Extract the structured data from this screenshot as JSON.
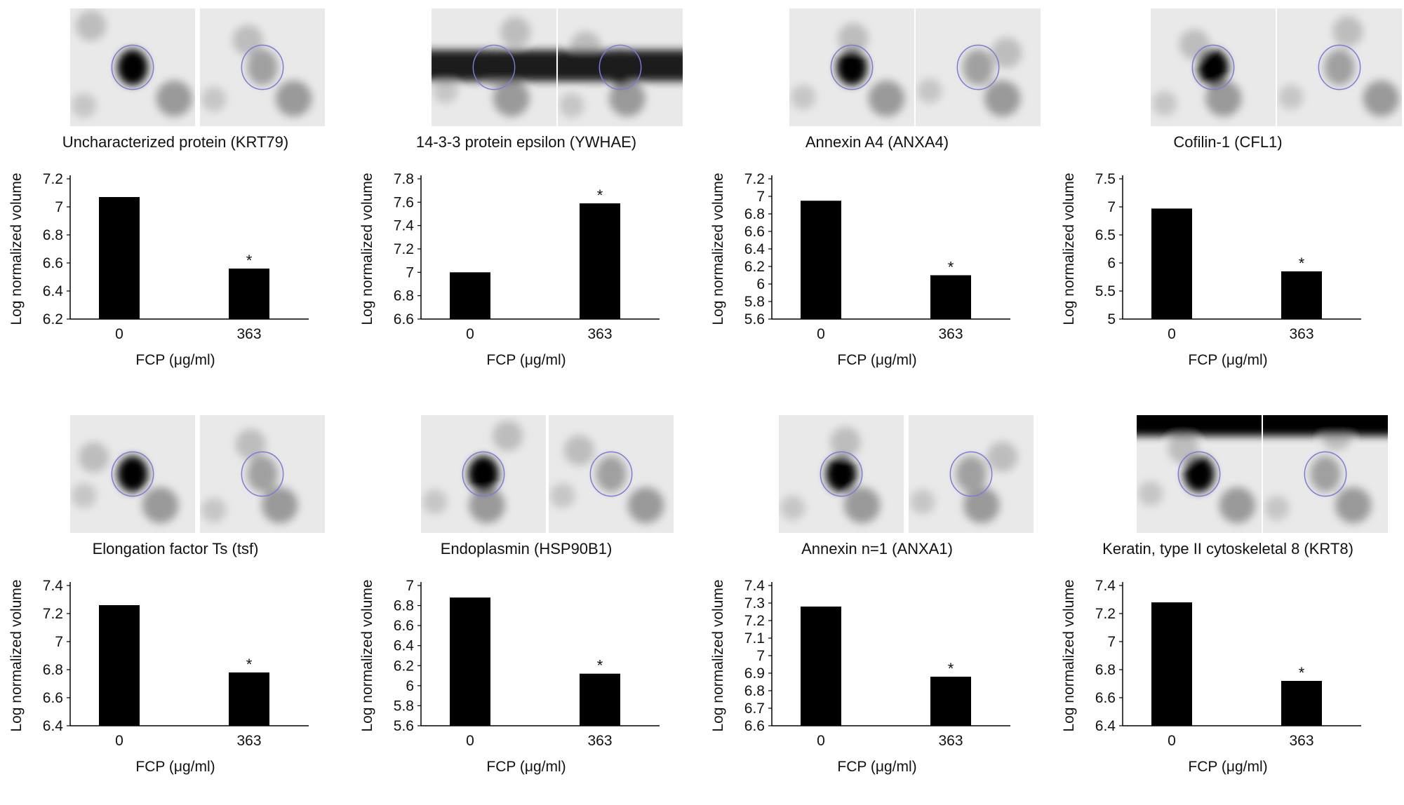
{
  "colors": {
    "bar": "#000000",
    "outline": "#7b7bd6",
    "axis": "#000000"
  },
  "panels": [
    {
      "protein": "Uncharacterized protein (KRT79)"
    },
    {
      "protein": "14-3-3 protein epsilon (YWHAE)"
    },
    {
      "protein": "Annexin A4 (ANXA4)"
    },
    {
      "protein": "Cofilin-1 (CFL1)"
    },
    {
      "protein": "Elongation factor Ts (tsf)"
    },
    {
      "protein": "Endoplasmin (HSP90B1)"
    },
    {
      "protein": "Annexin n=1 (ANXA1)"
    },
    {
      "protein": "Keratin, type II cytoskeletal 8 (KRT8)"
    }
  ],
  "chart_data": [
    {
      "type": "bar",
      "title": "Uncharacterized protein (KRT79)",
      "categories": [
        "0",
        "363"
      ],
      "values": [
        7.07,
        6.56
      ],
      "significance": [
        "",
        "*"
      ],
      "xlabel": "FCP (μg/ml)",
      "ylabel": "Log normalized volume",
      "ylim": [
        6.2,
        7.2
      ],
      "yticks": [
        "6.2",
        "6.4",
        "6.6",
        "6.8",
        "7",
        "7.2"
      ]
    },
    {
      "type": "bar",
      "title": "14-3-3 protein epsilon (YWHAE)",
      "categories": [
        "0",
        "363"
      ],
      "values": [
        7.0,
        7.59
      ],
      "significance": [
        "",
        "*"
      ],
      "xlabel": "FCP (μg/ml)",
      "ylabel": "Log normalized volume",
      "ylim": [
        6.6,
        7.8
      ],
      "yticks": [
        "6.6",
        "6.8",
        "7",
        "7.2",
        "7.4",
        "7.6",
        "7.8"
      ]
    },
    {
      "type": "bar",
      "title": "Annexin A4 (ANXA4)",
      "categories": [
        "0",
        "363"
      ],
      "values": [
        6.95,
        6.1
      ],
      "significance": [
        "",
        "*"
      ],
      "xlabel": "FCP (μg/ml)",
      "ylabel": "Log normalized volume",
      "ylim": [
        5.6,
        7.2
      ],
      "yticks": [
        "5.6",
        "5.8",
        "6",
        "6.2",
        "6.4",
        "6.6",
        "6.8",
        "7",
        "7.2"
      ]
    },
    {
      "type": "bar",
      "title": "Cofilin-1 (CFL1)",
      "categories": [
        "0",
        "363"
      ],
      "values": [
        6.97,
        5.85
      ],
      "significance": [
        "",
        "*"
      ],
      "xlabel": "FCP (μg/ml)",
      "ylabel": "Log normalized volume",
      "ylim": [
        5,
        7.5
      ],
      "yticks": [
        "5",
        "5.5",
        "6",
        "6.5",
        "7",
        "7.5"
      ]
    },
    {
      "type": "bar",
      "title": "Elongation factor Ts (tsf)",
      "categories": [
        "0",
        "363"
      ],
      "values": [
        7.26,
        6.78
      ],
      "significance": [
        "",
        "*"
      ],
      "xlabel": "FCP (μg/ml)",
      "ylabel": "Log normalized volume",
      "ylim": [
        6.4,
        7.4
      ],
      "yticks": [
        "6.4",
        "6.6",
        "6.8",
        "7",
        "7.2",
        "7.4"
      ]
    },
    {
      "type": "bar",
      "title": "Endoplasmin (HSP90B1)",
      "categories": [
        "0",
        "363"
      ],
      "values": [
        6.88,
        6.12
      ],
      "significance": [
        "",
        "*"
      ],
      "xlabel": "FCP (μg/ml)",
      "ylabel": "Log normalized volume",
      "ylim": [
        5.6,
        7
      ],
      "yticks": [
        "5.6",
        "5.8",
        "6",
        "6.2",
        "6.4",
        "6.6",
        "6.8",
        "7"
      ]
    },
    {
      "type": "bar",
      "title": "Annexin n=1 (ANXA1)",
      "categories": [
        "0",
        "363"
      ],
      "values": [
        7.28,
        6.88
      ],
      "significance": [
        "",
        "*"
      ],
      "xlabel": "FCP (μg/ml)",
      "ylabel": "Log normalized volume",
      "ylim": [
        6.6,
        7.4
      ],
      "yticks": [
        "6.6",
        "6.7",
        "6.8",
        "6.9",
        "7",
        "7.1",
        "7.2",
        "7.3",
        "7.4"
      ]
    },
    {
      "type": "bar",
      "title": "Keratin, type II cytoskeletal 8 (KRT8)",
      "categories": [
        "0",
        "363"
      ],
      "values": [
        7.28,
        6.72
      ],
      "significance": [
        "",
        "*"
      ],
      "xlabel": "FCP (μg/ml)",
      "ylabel": "Log normalized volume",
      "ylim": [
        6.4,
        7.4
      ],
      "yticks": [
        "6.4",
        "6.6",
        "6.8",
        "7",
        "7.2",
        "7.4"
      ]
    }
  ]
}
